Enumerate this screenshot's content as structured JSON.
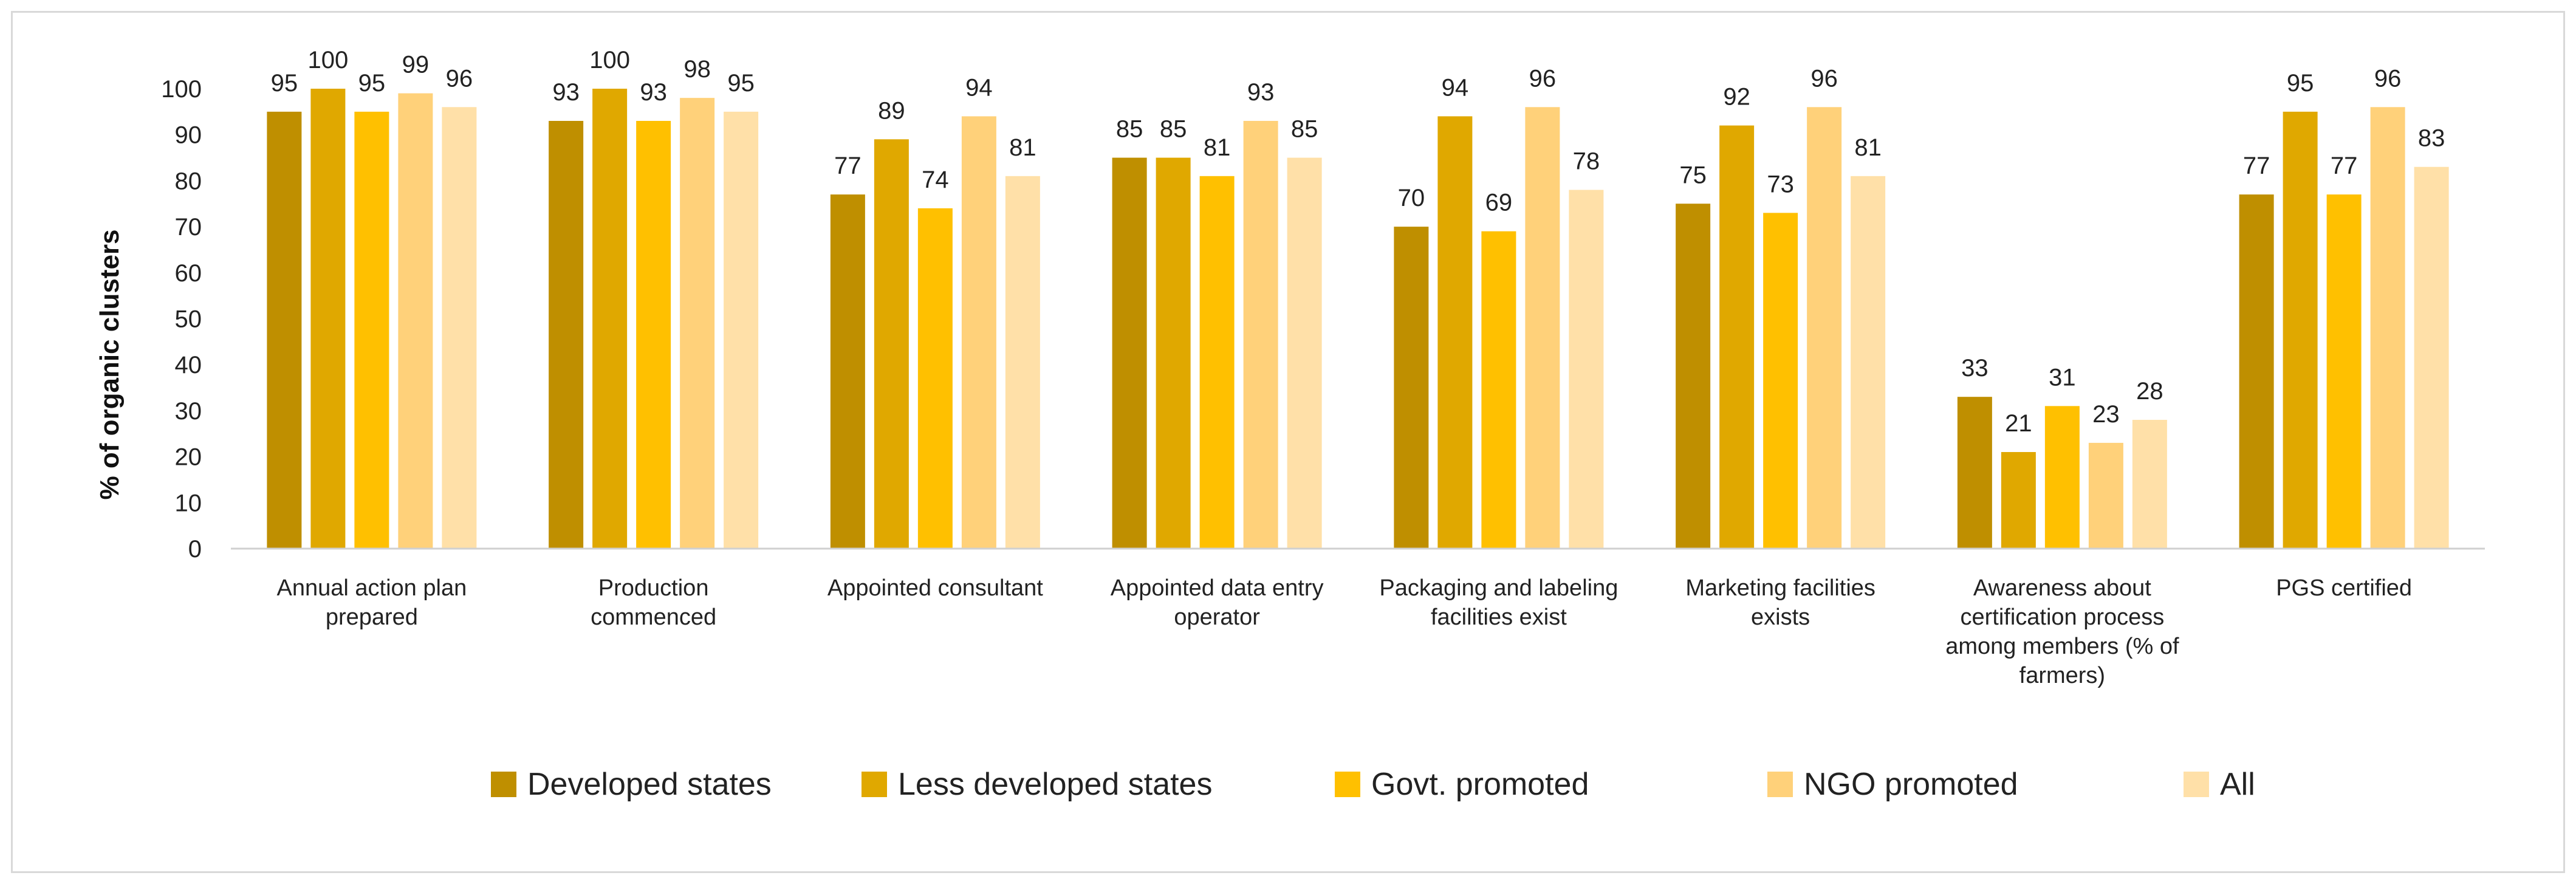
{
  "chart_data": {
    "type": "bar",
    "title": "",
    "xlabel": "",
    "ylabel": "% of organic clusters",
    "ylim": [
      0,
      100
    ],
    "yticks": [
      0,
      10,
      20,
      30,
      40,
      50,
      60,
      70,
      80,
      90,
      100
    ],
    "grid": false,
    "legend_position": "bottom",
    "categories": [
      [
        "Annual action plan",
        "prepared"
      ],
      [
        "Production",
        "commenced"
      ],
      [
        "Appointed consultant"
      ],
      [
        "Appointed data entry",
        "operator"
      ],
      [
        "Packaging and labeling",
        "facilities exist"
      ],
      [
        "Marketing facilities",
        "exists"
      ],
      [
        "Awareness about",
        "certification process",
        "among members (% of",
        "farmers)"
      ],
      [
        "PGS certified"
      ]
    ],
    "series": [
      {
        "name": "Developed states",
        "color": "#BF8F00",
        "values": [
          95,
          93,
          77,
          85,
          70,
          75,
          33,
          77
        ]
      },
      {
        "name": "Less developed states",
        "color": "#E0A800",
        "values": [
          100,
          100,
          89,
          85,
          94,
          92,
          21,
          95
        ]
      },
      {
        "name": "Govt. promoted",
        "color": "#FFC000",
        "values": [
          95,
          93,
          74,
          81,
          69,
          73,
          31,
          77
        ]
      },
      {
        "name": "NGO promoted",
        "color": "#FFD17A",
        "values": [
          99,
          98,
          94,
          93,
          96,
          96,
          23,
          96
        ]
      },
      {
        "name": "All",
        "color": "#FFE0A8",
        "values": [
          96,
          95,
          81,
          85,
          78,
          81,
          28,
          83
        ]
      }
    ]
  }
}
